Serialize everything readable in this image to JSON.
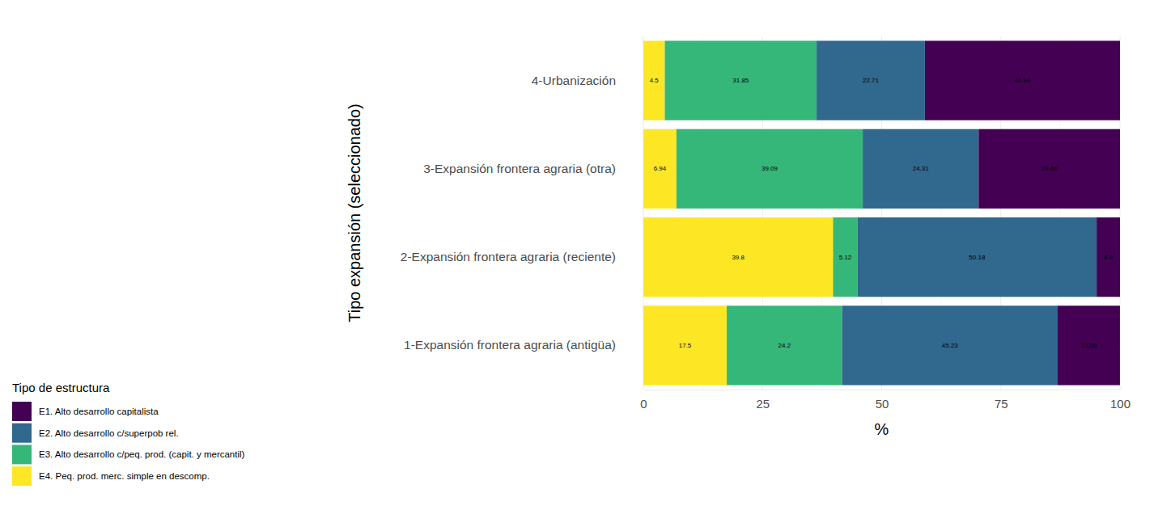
{
  "chart_data": {
    "type": "bar",
    "orientation": "horizontal",
    "stacked": true,
    "data_labels": true,
    "grid": true,
    "legend": "bottom-left",
    "legend_title": "Tipo de estructura",
    "x_label": "%",
    "y_label": "Tipo expansión (seleccionado)",
    "categories": [
      "1-Expansión frontera agraria (antigüa)",
      "2-Expansión frontera agraria (reciente)",
      "3-Expansión frontera agraria (otra)",
      "4-Urbanización"
    ],
    "series": [
      {
        "name": "E1. Alto desarrollo capitalista",
        "color": "#440154",
        "values": [
          13.06,
          4.9,
          29.66,
          40.94
        ]
      },
      {
        "name": "E2. Alto desarrollo c/superpob rel.",
        "color": "#31688E",
        "values": [
          45.23,
          50.18,
          24.31,
          22.71
        ]
      },
      {
        "name": "E3. Alto desarrollo c/peq. prod. (capit. y mercantil)",
        "color": "#35B779",
        "values": [
          24.2,
          5.12,
          39.09,
          31.85
        ]
      },
      {
        "name": "E4. Peq. prod. merc. simple en descomp.",
        "color": "#FDE725",
        "values": [
          17.5,
          39.8,
          6.94,
          4.5
        ]
      }
    ],
    "xlim": [
      0,
      100
    ],
    "xticks": [
      0,
      25,
      50,
      75,
      100
    ]
  }
}
